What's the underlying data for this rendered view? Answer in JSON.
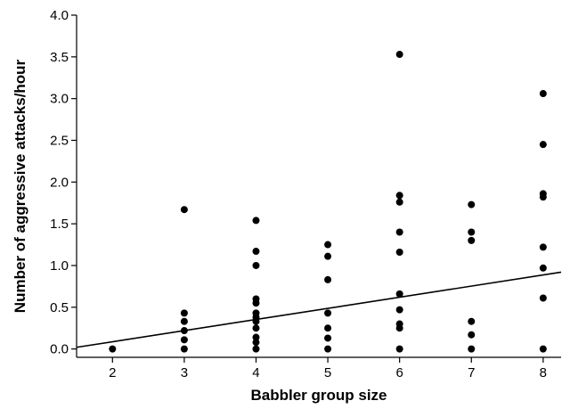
{
  "chart_data": {
    "type": "scatter",
    "title": "",
    "xlabel": "Babbler group size",
    "ylabel": "Number of aggressive attacks/hour",
    "xlim": [
      1.5,
      8.25
    ],
    "ylim": [
      -0.1,
      4.0
    ],
    "x_ticks": [
      2,
      3,
      4,
      5,
      6,
      7,
      8
    ],
    "y_ticks": [
      0.0,
      0.5,
      1.0,
      1.5,
      2.0,
      2.5,
      3.0,
      3.5,
      4.0
    ],
    "x_tick_labels": [
      "2",
      "3",
      "4",
      "5",
      "6",
      "7",
      "8"
    ],
    "y_tick_labels": [
      "0.0",
      "0.5",
      "1.0",
      "1.5",
      "2.0",
      "2.5",
      "3.0",
      "3.5",
      "4.0"
    ],
    "grid": false,
    "legend": "none",
    "marker_color": "#000000",
    "points": [
      {
        "x": 2,
        "y": 0.0
      },
      {
        "x": 3,
        "y": 1.67
      },
      {
        "x": 3,
        "y": 0.43
      },
      {
        "x": 3,
        "y": 0.33
      },
      {
        "x": 3,
        "y": 0.22
      },
      {
        "x": 3,
        "y": 0.11
      },
      {
        "x": 3,
        "y": 0.0
      },
      {
        "x": 4,
        "y": 1.54
      },
      {
        "x": 4,
        "y": 1.17
      },
      {
        "x": 4,
        "y": 1.0
      },
      {
        "x": 4,
        "y": 0.6
      },
      {
        "x": 4,
        "y": 0.55
      },
      {
        "x": 4,
        "y": 0.43
      },
      {
        "x": 4,
        "y": 0.38
      },
      {
        "x": 4,
        "y": 0.33
      },
      {
        "x": 4,
        "y": 0.25
      },
      {
        "x": 4,
        "y": 0.14
      },
      {
        "x": 4,
        "y": 0.08
      },
      {
        "x": 4,
        "y": 0.0
      },
      {
        "x": 5,
        "y": 1.25
      },
      {
        "x": 5,
        "y": 1.11
      },
      {
        "x": 5,
        "y": 0.83
      },
      {
        "x": 5,
        "y": 0.43
      },
      {
        "x": 5,
        "y": 0.25
      },
      {
        "x": 5,
        "y": 0.13
      },
      {
        "x": 5,
        "y": 0.0
      },
      {
        "x": 6,
        "y": 3.53
      },
      {
        "x": 6,
        "y": 1.84
      },
      {
        "x": 6,
        "y": 1.76
      },
      {
        "x": 6,
        "y": 1.4
      },
      {
        "x": 6,
        "y": 1.16
      },
      {
        "x": 6,
        "y": 0.66
      },
      {
        "x": 6,
        "y": 0.47
      },
      {
        "x": 6,
        "y": 0.3
      },
      {
        "x": 6,
        "y": 0.25
      },
      {
        "x": 6,
        "y": 0.0
      },
      {
        "x": 7,
        "y": 1.73
      },
      {
        "x": 7,
        "y": 1.4
      },
      {
        "x": 7,
        "y": 1.3
      },
      {
        "x": 7,
        "y": 0.33
      },
      {
        "x": 7,
        "y": 0.17
      },
      {
        "x": 7,
        "y": 0.0
      },
      {
        "x": 8,
        "y": 3.06
      },
      {
        "x": 8,
        "y": 2.45
      },
      {
        "x": 8,
        "y": 1.86
      },
      {
        "x": 8,
        "y": 1.82
      },
      {
        "x": 8,
        "y": 1.22
      },
      {
        "x": 8,
        "y": 0.97
      },
      {
        "x": 8,
        "y": 0.61
      },
      {
        "x": 8,
        "y": 0.0
      }
    ],
    "trend_line": {
      "x": [
        1.5,
        8.25
      ],
      "y": [
        0.02,
        0.92
      ]
    }
  }
}
